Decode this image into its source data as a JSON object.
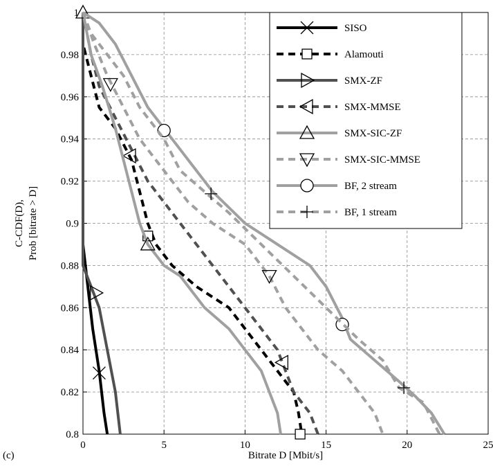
{
  "chart_data": {
    "type": "line",
    "xlabel": "Bitrate D [Mbit/s]",
    "ylabel": [
      "C-CDF(D),",
      "Prob [bitrate > D]"
    ],
    "panel_label": "(c)",
    "xlim": [
      0,
      25
    ],
    "xticks": [
      0,
      5,
      10,
      15,
      20,
      25
    ],
    "ylim": [
      0.8,
      1
    ],
    "yticks": [
      0.8,
      0.82,
      0.84,
      0.86,
      0.88,
      0.9,
      0.92,
      0.94,
      0.96,
      0.98,
      1
    ],
    "grid": true,
    "legend": "upper right",
    "series": [
      {
        "name": "SISO",
        "color": "#000000",
        "dash": false,
        "marker": "x",
        "x": [
          0,
          0,
          0.3,
          0.6,
          1,
          1.3,
          1.5
        ],
        "values": [
          1,
          0.89,
          0.87,
          0.85,
          0.83,
          0.81,
          0.8
        ],
        "marker_x": [
          1
        ],
        "marker_values": [
          0.829
        ]
      },
      {
        "name": "Alamouti",
        "color": "#000000",
        "dash": true,
        "marker": "square",
        "x": [
          0,
          0,
          0.5,
          1,
          2,
          3,
          3.5,
          4,
          4.5,
          5.5,
          7,
          9,
          10,
          11,
          12,
          13,
          13.3,
          13.5
        ],
        "values": [
          1,
          0.985,
          0.97,
          0.955,
          0.945,
          0.93,
          0.915,
          0.9,
          0.89,
          0.88,
          0.87,
          0.86,
          0.85,
          0.84,
          0.83,
          0.82,
          0.81,
          0.8
        ],
        "marker_x": [
          4,
          13.4
        ],
        "marker_values": [
          0.894,
          0.8
        ]
      },
      {
        "name": "SMX-ZF",
        "color": "#505050",
        "dash": false,
        "marker": "tri-right",
        "x": [
          0,
          0,
          0.5,
          1,
          1.5,
          2,
          2.3
        ],
        "values": [
          1,
          0.88,
          0.87,
          0.86,
          0.84,
          0.82,
          0.8
        ],
        "marker_x": [
          0.8
        ],
        "marker_values": [
          0.867
        ]
      },
      {
        "name": "SMX-MMSE",
        "color": "#505050",
        "dash": true,
        "marker": "tri-left",
        "x": [
          0,
          0.5,
          1,
          2,
          3,
          4,
          5,
          6,
          7,
          8,
          9,
          10,
          11,
          12,
          13,
          14,
          14.5
        ],
        "values": [
          1,
          0.98,
          0.965,
          0.95,
          0.935,
          0.92,
          0.91,
          0.9,
          0.89,
          0.88,
          0.87,
          0.86,
          0.85,
          0.84,
          0.82,
          0.81,
          0.8
        ],
        "marker_x": [
          2.9,
          12.3
        ],
        "marker_values": [
          0.932,
          0.834
        ]
      },
      {
        "name": "SMX-SIC-ZF",
        "color": "#a0a0a0",
        "dash": false,
        "marker": "tri-up",
        "x": [
          0,
          0.5,
          1.2,
          2,
          2.5,
          3,
          3.5,
          4,
          5,
          6,
          7.5,
          9,
          10,
          11,
          11.5,
          12,
          12.2
        ],
        "values": [
          1,
          0.98,
          0.965,
          0.945,
          0.93,
          0.915,
          0.9,
          0.89,
          0.88,
          0.875,
          0.86,
          0.85,
          0.84,
          0.83,
          0.82,
          0.81,
          0.8
        ],
        "marker_x": [
          0,
          4
        ],
        "marker_values": [
          1,
          0.89
        ]
      },
      {
        "name": "SMX-SIC-MMSE",
        "color": "#a0a0a0",
        "dash": true,
        "marker": "tri-down",
        "x": [
          0,
          0.7,
          1.5,
          2.5,
          3.5,
          5,
          6.5,
          8,
          10,
          11.5,
          12.5,
          13.5,
          14.5,
          16,
          17,
          18,
          18.5
        ],
        "values": [
          1,
          0.985,
          0.97,
          0.955,
          0.94,
          0.925,
          0.91,
          0.9,
          0.89,
          0.875,
          0.86,
          0.85,
          0.84,
          0.83,
          0.82,
          0.81,
          0.8
        ],
        "marker_x": [
          1.7,
          11.5
        ],
        "marker_values": [
          0.966,
          0.875
        ]
      },
      {
        "name": "BF, 2 stream",
        "color": "#a0a0a0",
        "dash": false,
        "marker": "circle",
        "x": [
          0,
          1,
          2,
          3,
          4,
          5,
          6,
          7,
          8,
          10,
          12,
          14,
          15,
          16,
          16.5,
          18,
          19.5,
          20.5,
          21.5,
          22.3
        ],
        "values": [
          1,
          0.995,
          0.985,
          0.97,
          0.955,
          0.945,
          0.935,
          0.925,
          0.915,
          0.9,
          0.89,
          0.88,
          0.87,
          0.855,
          0.845,
          0.835,
          0.825,
          0.818,
          0.81,
          0.8
        ],
        "marker_x": [
          5,
          16
        ],
        "marker_values": [
          0.944,
          0.852
        ]
      },
      {
        "name": "BF, 1 stream",
        "color": "#a0a0a0",
        "dash": true,
        "marker": "plus",
        "x": [
          0,
          0.5,
          1.5,
          2.5,
          3.5,
          5,
          6,
          7.5,
          9,
          11,
          13,
          15,
          17,
          18.5,
          19.5,
          21,
          22
        ],
        "values": [
          1,
          0.99,
          0.98,
          0.97,
          0.955,
          0.94,
          0.925,
          0.915,
          0.905,
          0.89,
          0.875,
          0.86,
          0.845,
          0.835,
          0.822,
          0.815,
          0.8
        ],
        "marker_x": [
          7.9,
          19.8
        ],
        "marker_values": [
          0.914,
          0.822
        ]
      }
    ]
  }
}
